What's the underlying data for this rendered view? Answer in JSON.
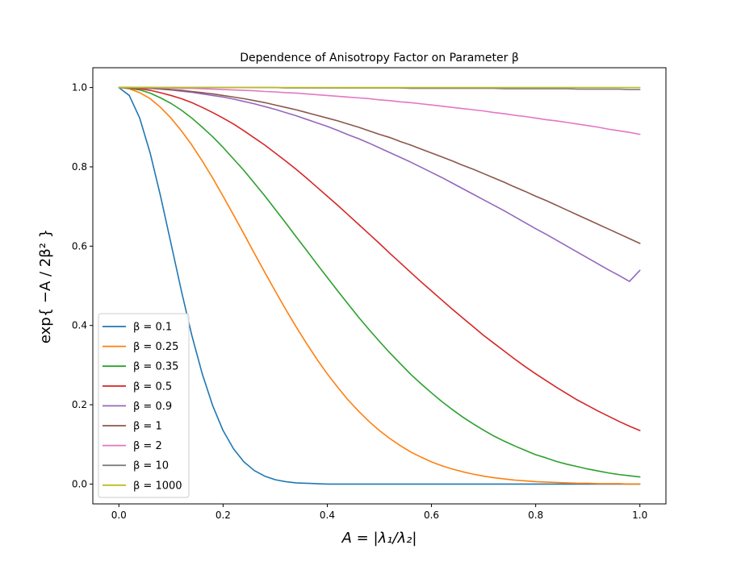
{
  "chart_data": {
    "type": "line",
    "title": "Dependence of Anisotropy Factor on Parameter β",
    "xlabel": "A = |λ₁/λ₂|",
    "ylabel": "exp{ −A / 2β² }",
    "xlim": [
      -0.05,
      1.05
    ],
    "ylim": [
      -0.05,
      1.05
    ],
    "grid": false,
    "legend_position": "lower-left",
    "x_ticks": [
      {
        "value": 0.0,
        "label": "0.0"
      },
      {
        "value": 0.2,
        "label": "0.2"
      },
      {
        "value": 0.4,
        "label": "0.4"
      },
      {
        "value": 0.6,
        "label": "0.6"
      },
      {
        "value": 0.8,
        "label": "0.8"
      },
      {
        "value": 1.0,
        "label": "1.0"
      }
    ],
    "y_ticks": [
      {
        "value": 0.0,
        "label": "0.0"
      },
      {
        "value": 0.2,
        "label": "0.2"
      },
      {
        "value": 0.4,
        "label": "0.4"
      },
      {
        "value": 0.6,
        "label": "0.6"
      },
      {
        "value": 0.8,
        "label": "0.8"
      },
      {
        "value": 1.0,
        "label": "1.0"
      }
    ],
    "x": [
      0.0,
      0.02,
      0.04,
      0.06,
      0.08,
      0.1,
      0.12,
      0.14,
      0.16,
      0.18,
      0.2,
      0.22,
      0.24,
      0.26,
      0.28,
      0.3,
      0.32,
      0.34,
      0.36,
      0.38,
      0.4,
      0.42,
      0.44,
      0.46,
      0.48,
      0.5,
      0.52,
      0.54,
      0.56,
      0.58,
      0.6,
      0.62,
      0.64,
      0.66,
      0.68,
      0.7,
      0.72,
      0.74,
      0.76,
      0.78,
      0.8,
      0.82,
      0.84,
      0.86,
      0.88,
      0.9,
      0.92,
      0.94,
      0.96,
      0.98,
      1.0
    ],
    "series": [
      {
        "name": "β = 0.1",
        "beta": 0.1,
        "color": "#1f77b4",
        "values": [
          1.0,
          0.98,
          0.923,
          0.835,
          0.726,
          0.607,
          0.487,
          0.375,
          0.278,
          0.198,
          0.135,
          0.089,
          0.056,
          0.034,
          0.02,
          0.011,
          0.006,
          0.003,
          0.002,
          0.001,
          0.0,
          0.0,
          0.0,
          0.0,
          0.0,
          0.0,
          0.0,
          0.0,
          0.0,
          0.0,
          0.0,
          0.0,
          0.0,
          0.0,
          0.0,
          0.0,
          0.0,
          0.0,
          0.0,
          0.0,
          0.0,
          0.0,
          0.0,
          0.0,
          0.0,
          0.0,
          0.0,
          0.0,
          0.0,
          0.0,
          0.0
        ]
      },
      {
        "name": "β = 0.25",
        "beta": 0.25,
        "color": "#ff7f0e",
        "values": [
          1.0,
          0.997,
          0.987,
          0.972,
          0.95,
          0.923,
          0.891,
          0.855,
          0.815,
          0.772,
          0.726,
          0.679,
          0.631,
          0.582,
          0.534,
          0.487,
          0.441,
          0.397,
          0.355,
          0.315,
          0.278,
          0.244,
          0.212,
          0.184,
          0.158,
          0.135,
          0.115,
          0.097,
          0.081,
          0.068,
          0.056,
          0.046,
          0.038,
          0.031,
          0.025,
          0.02,
          0.016,
          0.013,
          0.01,
          0.008,
          0.006,
          0.005,
          0.004,
          0.003,
          0.002,
          0.002,
          0.001,
          0.001,
          0.001,
          0.0,
          0.0
        ]
      },
      {
        "name": "β = 0.35",
        "beta": 0.35,
        "color": "#2ca02c",
        "values": [
          1.0,
          0.998,
          0.994,
          0.986,
          0.974,
          0.96,
          0.943,
          0.923,
          0.9,
          0.876,
          0.849,
          0.82,
          0.791,
          0.759,
          0.727,
          0.693,
          0.659,
          0.624,
          0.59,
          0.555,
          0.521,
          0.487,
          0.454,
          0.421,
          0.39,
          0.36,
          0.331,
          0.304,
          0.277,
          0.253,
          0.23,
          0.208,
          0.188,
          0.169,
          0.152,
          0.136,
          0.121,
          0.108,
          0.096,
          0.085,
          0.074,
          0.066,
          0.057,
          0.05,
          0.044,
          0.038,
          0.033,
          0.028,
          0.024,
          0.021,
          0.018
        ]
      },
      {
        "name": "β = 0.5",
        "beta": 0.5,
        "color": "#d62728",
        "values": [
          1.0,
          0.999,
          0.997,
          0.993,
          0.987,
          0.98,
          0.972,
          0.962,
          0.95,
          0.937,
          0.923,
          0.908,
          0.891,
          0.873,
          0.855,
          0.835,
          0.815,
          0.794,
          0.772,
          0.749,
          0.726,
          0.703,
          0.679,
          0.655,
          0.631,
          0.607,
          0.582,
          0.558,
          0.534,
          0.51,
          0.487,
          0.464,
          0.441,
          0.419,
          0.397,
          0.375,
          0.355,
          0.335,
          0.315,
          0.296,
          0.278,
          0.261,
          0.244,
          0.228,
          0.212,
          0.198,
          0.184,
          0.171,
          0.158,
          0.146,
          0.135
        ]
      },
      {
        "name": "β = 0.9",
        "beta": 0.9,
        "color": "#9467bd",
        "values": [
          1.0,
          1.0,
          0.999,
          0.998,
          0.996,
          0.994,
          0.991,
          0.988,
          0.984,
          0.98,
          0.976,
          0.971,
          0.965,
          0.959,
          0.952,
          0.945,
          0.937,
          0.929,
          0.92,
          0.911,
          0.902,
          0.892,
          0.881,
          0.871,
          0.86,
          0.848,
          0.836,
          0.824,
          0.812,
          0.799,
          0.786,
          0.773,
          0.759,
          0.745,
          0.731,
          0.717,
          0.703,
          0.689,
          0.674,
          0.659,
          0.644,
          0.63,
          0.615,
          0.6,
          0.585,
          0.57,
          0.555,
          0.54,
          0.526,
          0.511,
          0.539
        ]
      },
      {
        "name": "β = 1",
        "beta": 1,
        "color": "#8c564b",
        "values": [
          1.0,
          1.0,
          0.999,
          0.998,
          0.997,
          0.995,
          0.993,
          0.99,
          0.987,
          0.984,
          0.98,
          0.976,
          0.972,
          0.967,
          0.962,
          0.956,
          0.95,
          0.944,
          0.937,
          0.93,
          0.923,
          0.916,
          0.908,
          0.9,
          0.891,
          0.882,
          0.874,
          0.864,
          0.855,
          0.845,
          0.835,
          0.825,
          0.815,
          0.804,
          0.794,
          0.783,
          0.772,
          0.761,
          0.749,
          0.738,
          0.726,
          0.715,
          0.703,
          0.691,
          0.679,
          0.667,
          0.655,
          0.643,
          0.631,
          0.619,
          0.607
        ]
      },
      {
        "name": "β = 2",
        "beta": 2,
        "color": "#e377c2",
        "values": [
          1.0,
          1.0,
          1.0,
          1.0,
          0.999,
          0.999,
          0.998,
          0.998,
          0.997,
          0.996,
          0.995,
          0.994,
          0.993,
          0.992,
          0.99,
          0.989,
          0.987,
          0.986,
          0.984,
          0.982,
          0.98,
          0.978,
          0.976,
          0.974,
          0.972,
          0.969,
          0.967,
          0.964,
          0.962,
          0.959,
          0.956,
          0.953,
          0.95,
          0.947,
          0.944,
          0.941,
          0.937,
          0.934,
          0.93,
          0.927,
          0.923,
          0.919,
          0.916,
          0.912,
          0.908,
          0.904,
          0.9,
          0.895,
          0.891,
          0.887,
          0.882
        ]
      },
      {
        "name": "β = 10",
        "beta": 10,
        "color": "#7f7f7f",
        "values": [
          1.0,
          1.0,
          1.0,
          1.0,
          1.0,
          1.0,
          1.0,
          1.0,
          1.0,
          1.0,
          1.0,
          1.0,
          1.0,
          1.0,
          1.0,
          1.0,
          0.999,
          0.999,
          0.999,
          0.999,
          0.999,
          0.999,
          0.999,
          0.999,
          0.999,
          0.999,
          0.999,
          0.999,
          0.998,
          0.998,
          0.998,
          0.998,
          0.998,
          0.998,
          0.998,
          0.998,
          0.998,
          0.997,
          0.997,
          0.997,
          0.997,
          0.997,
          0.997,
          0.997,
          0.996,
          0.996,
          0.996,
          0.996,
          0.996,
          0.995,
          0.995
        ]
      },
      {
        "name": "β = 1000",
        "beta": 1000,
        "color": "#bcbd22",
        "values": [
          1.0,
          1.0,
          1.0,
          1.0,
          1.0,
          1.0,
          1.0,
          1.0,
          1.0,
          1.0,
          1.0,
          1.0,
          1.0,
          1.0,
          1.0,
          1.0,
          1.0,
          1.0,
          1.0,
          1.0,
          1.0,
          1.0,
          1.0,
          1.0,
          1.0,
          1.0,
          1.0,
          1.0,
          1.0,
          1.0,
          1.0,
          1.0,
          1.0,
          1.0,
          1.0,
          1.0,
          1.0,
          1.0,
          1.0,
          1.0,
          1.0,
          1.0,
          1.0,
          1.0,
          1.0,
          1.0,
          1.0,
          1.0,
          1.0,
          1.0,
          1.0
        ]
      }
    ]
  }
}
